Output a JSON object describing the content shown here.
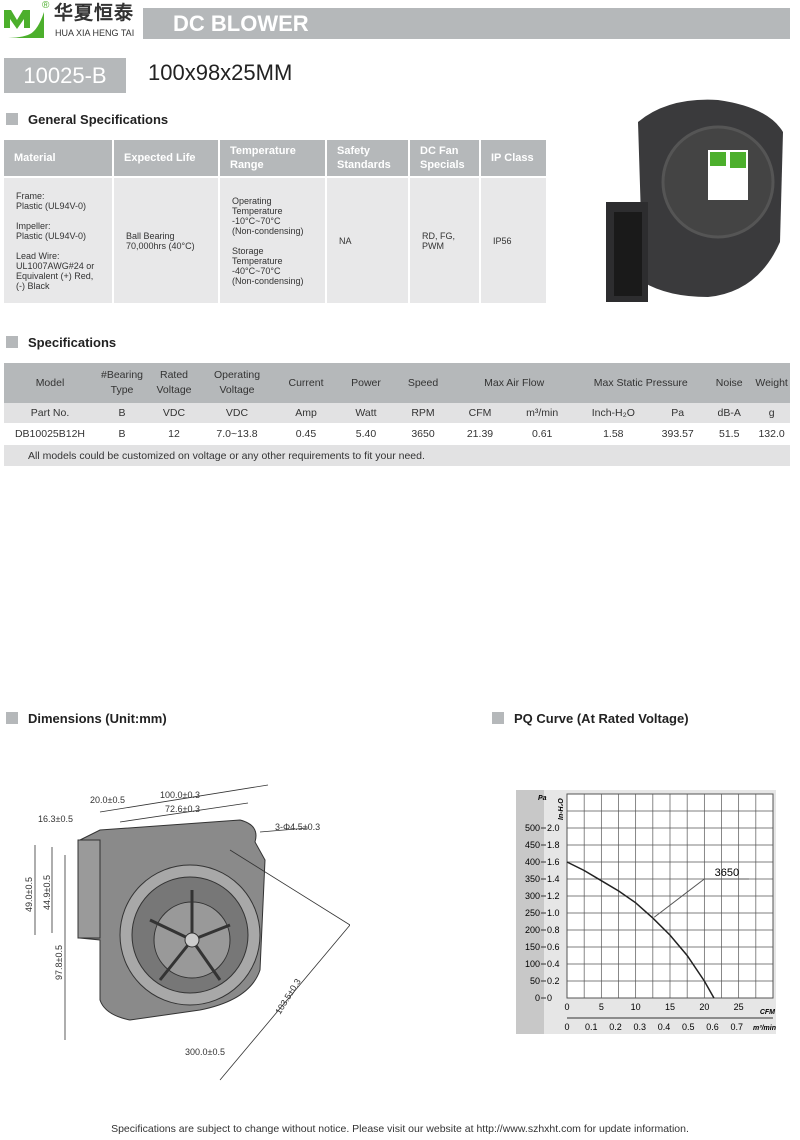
{
  "brand": {
    "cn": "华夏恒泰",
    "en": "HUA XIA HENG TAI",
    "reg": "®",
    "color": "#4caf2c"
  },
  "header": {
    "title": "DC BLOWER",
    "model": "10025-B",
    "size": "100x98x25MM"
  },
  "general": {
    "title": "General Specifications",
    "headers": [
      "Material",
      "Expected Life",
      "Temperature Range",
      "Safety Standards",
      "DC Fan Specials",
      "IP Class"
    ],
    "material": [
      "Frame:",
      "Plastic (UL94V-0)",
      "",
      "Impeller:",
      "Plastic (UL94V-0)",
      "",
      "Lead Wire:",
      "UL1007AWG#24 or",
      "Equivalent (+) Red,",
      "(-) Black"
    ],
    "life": [
      "Ball Bearing",
      "70,000hrs (40°C)"
    ],
    "temperature": [
      "Operating",
      "Temperature",
      "-10°C~70°C",
      "(Non-condensing)",
      "",
      "Storage",
      "Temperature",
      "-40°C~70°C",
      "(Non-condensing)"
    ],
    "safety": "NA",
    "specials": [
      "RD, FG,",
      "PWM"
    ],
    "ip": "IP56"
  },
  "specs": {
    "title": "Specifications",
    "headers": [
      "Model",
      "#Bearing Type",
      "Rated Voltage",
      "Operating Voltage",
      "Current",
      "Power",
      "Speed",
      "Max  Air  Flow",
      "Max Static  Pressure",
      "Noise",
      "Weight"
    ],
    "units": [
      "Part No.",
      "B",
      "VDC",
      "VDC",
      "Amp",
      "Watt",
      "RPM",
      "CFM",
      "m³/min",
      "Inch-H₂O",
      "Pa",
      "dB-A",
      "g"
    ],
    "row": [
      "DB10025B12H",
      "B",
      "12",
      "7.0~13.8",
      "0.45",
      "5.40",
      "3650",
      "21.39",
      "0.61",
      "1.58",
      "393.57",
      "51.5",
      "132.0"
    ],
    "note": "All models could be customized on voltage or any other requirements to fit your need."
  },
  "dimensions": {
    "title": "Dimensions (Unit:mm)",
    "labels": {
      "w100": "100.0±0.3",
      "w72": "72.6±0.3",
      "w20": "20.0±0.5",
      "w16": "16.3±0.5",
      "h49": "49.0±0.5",
      "h44": "44.9±0.5",
      "h97": "97.8±0.5",
      "hole": "3-Φ4.5±0.3",
      "diag": "103.5±0.3",
      "lead": "300.0±0.5"
    }
  },
  "pq": {
    "title": "PQ Curve (At Rated Voltage)"
  },
  "chart_data": {
    "type": "line",
    "title": "",
    "xlabel": "CFM",
    "x2label": "m³/min",
    "ylabel": "Pa",
    "y2label": "In-H₂O",
    "xlim": [
      0,
      30
    ],
    "ylim": [
      0,
      2.4
    ],
    "xticks": [
      0,
      5,
      10,
      15,
      20,
      25
    ],
    "x2ticks": [
      "0",
      "0.1",
      "0.2",
      "0.3",
      "0.4",
      "0.5",
      "0.6",
      "0.7"
    ],
    "yticks_inh2o": [
      "0",
      "0.2",
      "0.4",
      "0.6",
      "0.8",
      "1.0",
      "1.2",
      "1.4",
      "1.6",
      "1.8",
      "2.0"
    ],
    "yticks_pa": [
      "0",
      "50",
      "100",
      "150",
      "200",
      "250",
      "300",
      "350",
      "400",
      "450",
      "500"
    ],
    "grid": true,
    "series": [
      {
        "name": "3650",
        "x": [
          0,
          2.5,
          5,
          7.5,
          10,
          12.5,
          15,
          17.5,
          20,
          21.4
        ],
        "y": [
          1.6,
          1.5,
          1.38,
          1.26,
          1.12,
          0.94,
          0.74,
          0.5,
          0.2,
          0
        ]
      }
    ]
  },
  "footer": "Specifications are subject to change without notice. Please visit our website at http://www.szhxht.com for update information."
}
